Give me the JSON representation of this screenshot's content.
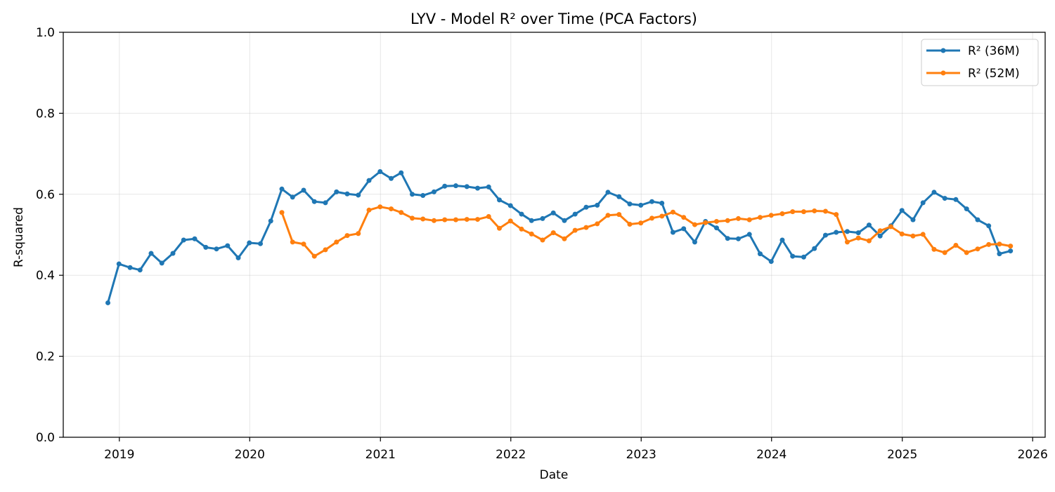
{
  "chart_data": {
    "type": "line",
    "title": "LYV - Model R² over Time (PCA Factors)",
    "xlabel": "Date",
    "ylabel": "R-squared",
    "xlim": [
      "2018-07-28",
      "2026-02-05"
    ],
    "ylim": [
      0,
      1
    ],
    "x_ticks": [
      "2019",
      "2020",
      "2021",
      "2022",
      "2023",
      "2024",
      "2025",
      "2026"
    ],
    "y_ticks": [
      "0.0",
      "0.2",
      "0.4",
      "0.6",
      "0.8",
      "1.0"
    ],
    "grid": true,
    "legend_position": "top-right",
    "series": [
      {
        "name": "R² (36M)",
        "color": "#1f77b4",
        "points": [
          [
            "2018-11-30",
            0.332
          ],
          [
            "2018-12-31",
            0.428
          ],
          [
            "2019-01-31",
            0.419
          ],
          [
            "2019-02-28",
            0.413
          ],
          [
            "2019-03-31",
            0.454
          ],
          [
            "2019-04-30",
            0.43
          ],
          [
            "2019-05-31",
            0.454
          ],
          [
            "2019-06-30",
            0.487
          ],
          [
            "2019-07-31",
            0.49
          ],
          [
            "2019-08-31",
            0.469
          ],
          [
            "2019-09-30",
            0.465
          ],
          [
            "2019-10-31",
            0.473
          ],
          [
            "2019-11-30",
            0.443
          ],
          [
            "2019-12-31",
            0.48
          ],
          [
            "2020-01-31",
            0.478
          ],
          [
            "2020-02-29",
            0.534
          ],
          [
            "2020-03-31",
            0.613
          ],
          [
            "2020-04-30",
            0.593
          ],
          [
            "2020-05-31",
            0.61
          ],
          [
            "2020-06-30",
            0.582
          ],
          [
            "2020-07-31",
            0.579
          ],
          [
            "2020-08-31",
            0.606
          ],
          [
            "2020-09-30",
            0.601
          ],
          [
            "2020-10-31",
            0.598
          ],
          [
            "2020-11-30",
            0.634
          ],
          [
            "2020-12-31",
            0.656
          ],
          [
            "2021-01-31",
            0.639
          ],
          [
            "2021-02-28",
            0.653
          ],
          [
            "2021-03-31",
            0.6
          ],
          [
            "2021-04-30",
            0.597
          ],
          [
            "2021-05-31",
            0.606
          ],
          [
            "2021-06-30",
            0.62
          ],
          [
            "2021-07-31",
            0.621
          ],
          [
            "2021-08-31",
            0.619
          ],
          [
            "2021-09-30",
            0.615
          ],
          [
            "2021-10-31",
            0.618
          ],
          [
            "2021-11-30",
            0.586
          ],
          [
            "2021-12-31",
            0.572
          ],
          [
            "2022-01-31",
            0.551
          ],
          [
            "2022-02-28",
            0.535
          ],
          [
            "2022-03-31",
            0.54
          ],
          [
            "2022-04-30",
            0.554
          ],
          [
            "2022-05-31",
            0.535
          ],
          [
            "2022-06-30",
            0.551
          ],
          [
            "2022-07-31",
            0.568
          ],
          [
            "2022-08-31",
            0.573
          ],
          [
            "2022-09-30",
            0.605
          ],
          [
            "2022-10-31",
            0.594
          ],
          [
            "2022-11-30",
            0.576
          ],
          [
            "2022-12-31",
            0.573
          ],
          [
            "2023-01-31",
            0.582
          ],
          [
            "2023-02-28",
            0.578
          ],
          [
            "2023-03-31",
            0.506
          ],
          [
            "2023-04-30",
            0.515
          ],
          [
            "2023-05-31",
            0.482
          ],
          [
            "2023-06-30",
            0.533
          ],
          [
            "2023-07-31",
            0.517
          ],
          [
            "2023-08-31",
            0.491
          ],
          [
            "2023-09-30",
            0.49
          ],
          [
            "2023-10-31",
            0.501
          ],
          [
            "2023-11-30",
            0.453
          ],
          [
            "2023-12-31",
            0.434
          ],
          [
            "2024-01-31",
            0.487
          ],
          [
            "2024-02-29",
            0.447
          ],
          [
            "2024-03-31",
            0.445
          ],
          [
            "2024-04-30",
            0.466
          ],
          [
            "2024-05-31",
            0.499
          ],
          [
            "2024-06-30",
            0.506
          ],
          [
            "2024-07-31",
            0.508
          ],
          [
            "2024-08-31",
            0.505
          ],
          [
            "2024-09-30",
            0.524
          ],
          [
            "2024-10-31",
            0.497
          ],
          [
            "2024-11-30",
            0.522
          ],
          [
            "2024-12-31",
            0.56
          ],
          [
            "2025-01-31",
            0.537
          ],
          [
            "2025-02-28",
            0.579
          ],
          [
            "2025-03-31",
            0.605
          ],
          [
            "2025-04-30",
            0.59
          ],
          [
            "2025-05-31",
            0.587
          ],
          [
            "2025-06-30",
            0.564
          ],
          [
            "2025-07-31",
            0.537
          ],
          [
            "2025-08-31",
            0.522
          ],
          [
            "2025-09-30",
            0.453
          ],
          [
            "2025-10-31",
            0.46
          ]
        ]
      },
      {
        "name": "R² (52M)",
        "color": "#ff7f0e",
        "points": [
          [
            "2020-03-31",
            0.555
          ],
          [
            "2020-04-30",
            0.482
          ],
          [
            "2020-05-31",
            0.477
          ],
          [
            "2020-06-30",
            0.447
          ],
          [
            "2020-07-31",
            0.463
          ],
          [
            "2020-08-31",
            0.482
          ],
          [
            "2020-09-30",
            0.498
          ],
          [
            "2020-10-31",
            0.503
          ],
          [
            "2020-11-30",
            0.561
          ],
          [
            "2020-12-31",
            0.569
          ],
          [
            "2021-01-31",
            0.564
          ],
          [
            "2021-02-28",
            0.555
          ],
          [
            "2021-03-31",
            0.541
          ],
          [
            "2021-04-30",
            0.539
          ],
          [
            "2021-05-31",
            0.535
          ],
          [
            "2021-06-30",
            0.537
          ],
          [
            "2021-07-31",
            0.537
          ],
          [
            "2021-08-31",
            0.538
          ],
          [
            "2021-09-30",
            0.538
          ],
          [
            "2021-10-31",
            0.545
          ],
          [
            "2021-11-30",
            0.516
          ],
          [
            "2021-12-31",
            0.534
          ],
          [
            "2022-01-31",
            0.514
          ],
          [
            "2022-02-28",
            0.502
          ],
          [
            "2022-03-31",
            0.487
          ],
          [
            "2022-04-30",
            0.505
          ],
          [
            "2022-05-31",
            0.49
          ],
          [
            "2022-06-30",
            0.511
          ],
          [
            "2022-07-31",
            0.518
          ],
          [
            "2022-08-31",
            0.527
          ],
          [
            "2022-09-30",
            0.548
          ],
          [
            "2022-10-31",
            0.55
          ],
          [
            "2022-11-30",
            0.526
          ],
          [
            "2022-12-31",
            0.529
          ],
          [
            "2023-01-31",
            0.541
          ],
          [
            "2023-02-28",
            0.546
          ],
          [
            "2023-03-31",
            0.556
          ],
          [
            "2023-04-30",
            0.543
          ],
          [
            "2023-05-31",
            0.525
          ],
          [
            "2023-06-30",
            0.53
          ],
          [
            "2023-07-31",
            0.533
          ],
          [
            "2023-08-31",
            0.535
          ],
          [
            "2023-09-30",
            0.54
          ],
          [
            "2023-10-31",
            0.537
          ],
          [
            "2023-11-30",
            0.543
          ],
          [
            "2023-12-31",
            0.548
          ],
          [
            "2024-01-31",
            0.552
          ],
          [
            "2024-02-29",
            0.557
          ],
          [
            "2024-03-31",
            0.557
          ],
          [
            "2024-04-30",
            0.559
          ],
          [
            "2024-05-31",
            0.558
          ],
          [
            "2024-06-30",
            0.55
          ],
          [
            "2024-07-31",
            0.482
          ],
          [
            "2024-08-31",
            0.492
          ],
          [
            "2024-09-30",
            0.485
          ],
          [
            "2024-10-31",
            0.51
          ],
          [
            "2024-11-30",
            0.52
          ],
          [
            "2024-12-31",
            0.502
          ],
          [
            "2025-01-31",
            0.497
          ],
          [
            "2025-02-28",
            0.501
          ],
          [
            "2025-03-31",
            0.464
          ],
          [
            "2025-04-30",
            0.456
          ],
          [
            "2025-05-31",
            0.474
          ],
          [
            "2025-06-30",
            0.456
          ],
          [
            "2025-07-31",
            0.465
          ],
          [
            "2025-08-31",
            0.476
          ],
          [
            "2025-09-30",
            0.477
          ],
          [
            "2025-10-31",
            0.472
          ]
        ]
      }
    ]
  }
}
